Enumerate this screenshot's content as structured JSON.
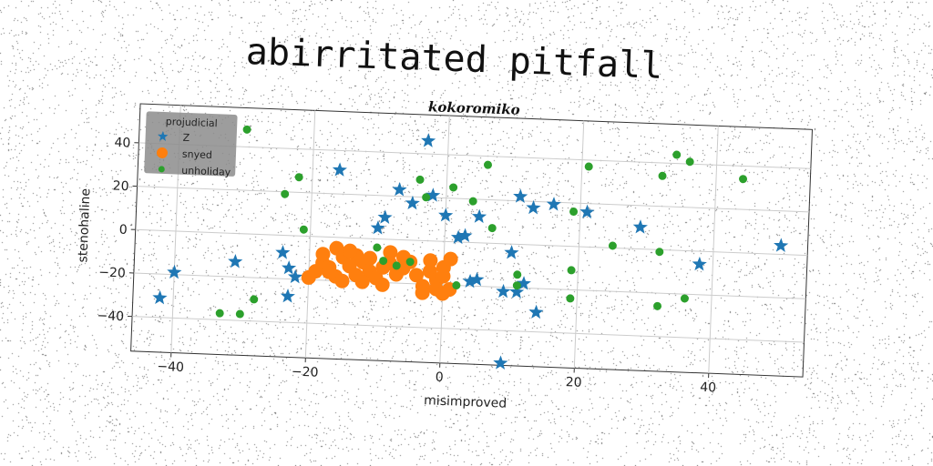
{
  "title": "abirritated pitfall",
  "chart_data": {
    "type": "scatter",
    "title": "kokoromiko",
    "xlabel": "misimproved",
    "ylabel": "stenohaline",
    "xlim": [
      -46,
      54
    ],
    "ylim": [
      -56,
      58
    ],
    "xticks": [
      -40,
      -20,
      0,
      20,
      40
    ],
    "yticks": [
      -40,
      -20,
      0,
      20,
      40
    ],
    "grid": true,
    "legend": {
      "title": "projudicial",
      "placement": "top-left"
    },
    "series": [
      {
        "name": "Z",
        "color": "#1f77b4",
        "marker": "star",
        "points": [
          [
            -42,
            -31
          ],
          [
            -40,
            -19
          ],
          [
            -31,
            -13
          ],
          [
            -24,
            -8
          ],
          [
            -23,
            -15
          ],
          [
            -22,
            -19
          ],
          [
            -23,
            -28
          ],
          [
            -16,
            31
          ],
          [
            -7,
            23
          ],
          [
            -9,
            10
          ],
          [
            -10,
            5
          ],
          [
            -5,
            17
          ],
          [
            -3,
            46
          ],
          [
            -2,
            21
          ],
          [
            0,
            12
          ],
          [
            2,
            2
          ],
          [
            3,
            3
          ],
          [
            4,
            -18
          ],
          [
            5,
            -17
          ],
          [
            5,
            12
          ],
          [
            9,
            -22
          ],
          [
            10,
            -4
          ],
          [
            11,
            -22
          ],
          [
            12,
            -18
          ],
          [
            11,
            22
          ],
          [
            13,
            17
          ],
          [
            14,
            -31
          ],
          [
            16,
            19
          ],
          [
            21,
            16
          ],
          [
            29,
            10
          ],
          [
            38,
            -6
          ],
          [
            50,
            4
          ],
          [
            9,
            -55
          ]
        ]
      },
      {
        "name": "snyed",
        "color": "#ff7f0e",
        "marker": "circle",
        "points": [
          [
            -20,
            -19
          ],
          [
            -19,
            -16
          ],
          [
            -18,
            -12
          ],
          [
            -18,
            -8
          ],
          [
            -17,
            -14
          ],
          [
            -16,
            -18
          ],
          [
            -16,
            -5
          ],
          [
            -15,
            -9
          ],
          [
            -15,
            -20
          ],
          [
            -14,
            -13
          ],
          [
            -13,
            -17
          ],
          [
            -13,
            -8
          ],
          [
            -12,
            -11
          ],
          [
            -11,
            -15
          ],
          [
            -11,
            -9
          ],
          [
            -10,
            -18
          ],
          [
            -9,
            -13
          ],
          [
            -9,
            -21
          ],
          [
            -8,
            -6
          ],
          [
            -8,
            -11
          ],
          [
            -7,
            -16
          ],
          [
            -6,
            -13
          ],
          [
            -5,
            -10
          ],
          [
            -4,
            -16
          ],
          [
            -3,
            -21
          ],
          [
            -3,
            -24
          ],
          [
            -2,
            -14
          ],
          [
            -1,
            -18
          ],
          [
            -1,
            -22
          ],
          [
            0,
            -12
          ],
          [
            0,
            -24
          ],
          [
            1,
            -8
          ],
          [
            1,
            -22
          ],
          [
            -17,
            -16
          ],
          [
            -14,
            -6
          ],
          [
            -12,
            -20
          ],
          [
            -6,
            -8
          ],
          [
            -2,
            -9
          ],
          [
            0,
            -16
          ]
        ]
      },
      {
        "name": "unholiday",
        "color": "#2ca02c",
        "marker": "circle",
        "points": [
          [
            -30,
            48
          ],
          [
            -33,
            -37
          ],
          [
            -30,
            -37
          ],
          [
            -28,
            -30
          ],
          [
            -24,
            19
          ],
          [
            -22,
            27
          ],
          [
            -21,
            3
          ],
          [
            -10,
            -4
          ],
          [
            -9,
            -10
          ],
          [
            -7,
            -12
          ],
          [
            -5,
            -10
          ],
          [
            -4,
            28
          ],
          [
            -3,
            20
          ],
          [
            1,
            25
          ],
          [
            2,
            -20
          ],
          [
            4,
            19
          ],
          [
            6,
            36
          ],
          [
            7,
            7
          ],
          [
            11,
            -14
          ],
          [
            11,
            -19
          ],
          [
            19,
            -11
          ],
          [
            19,
            -24
          ],
          [
            19,
            16
          ],
          [
            21,
            37
          ],
          [
            25,
            1
          ],
          [
            32,
            34
          ],
          [
            32,
            -1
          ],
          [
            32,
            -26
          ],
          [
            34,
            44
          ],
          [
            36,
            41
          ],
          [
            36,
            -22
          ],
          [
            44,
            34
          ]
        ]
      }
    ]
  }
}
